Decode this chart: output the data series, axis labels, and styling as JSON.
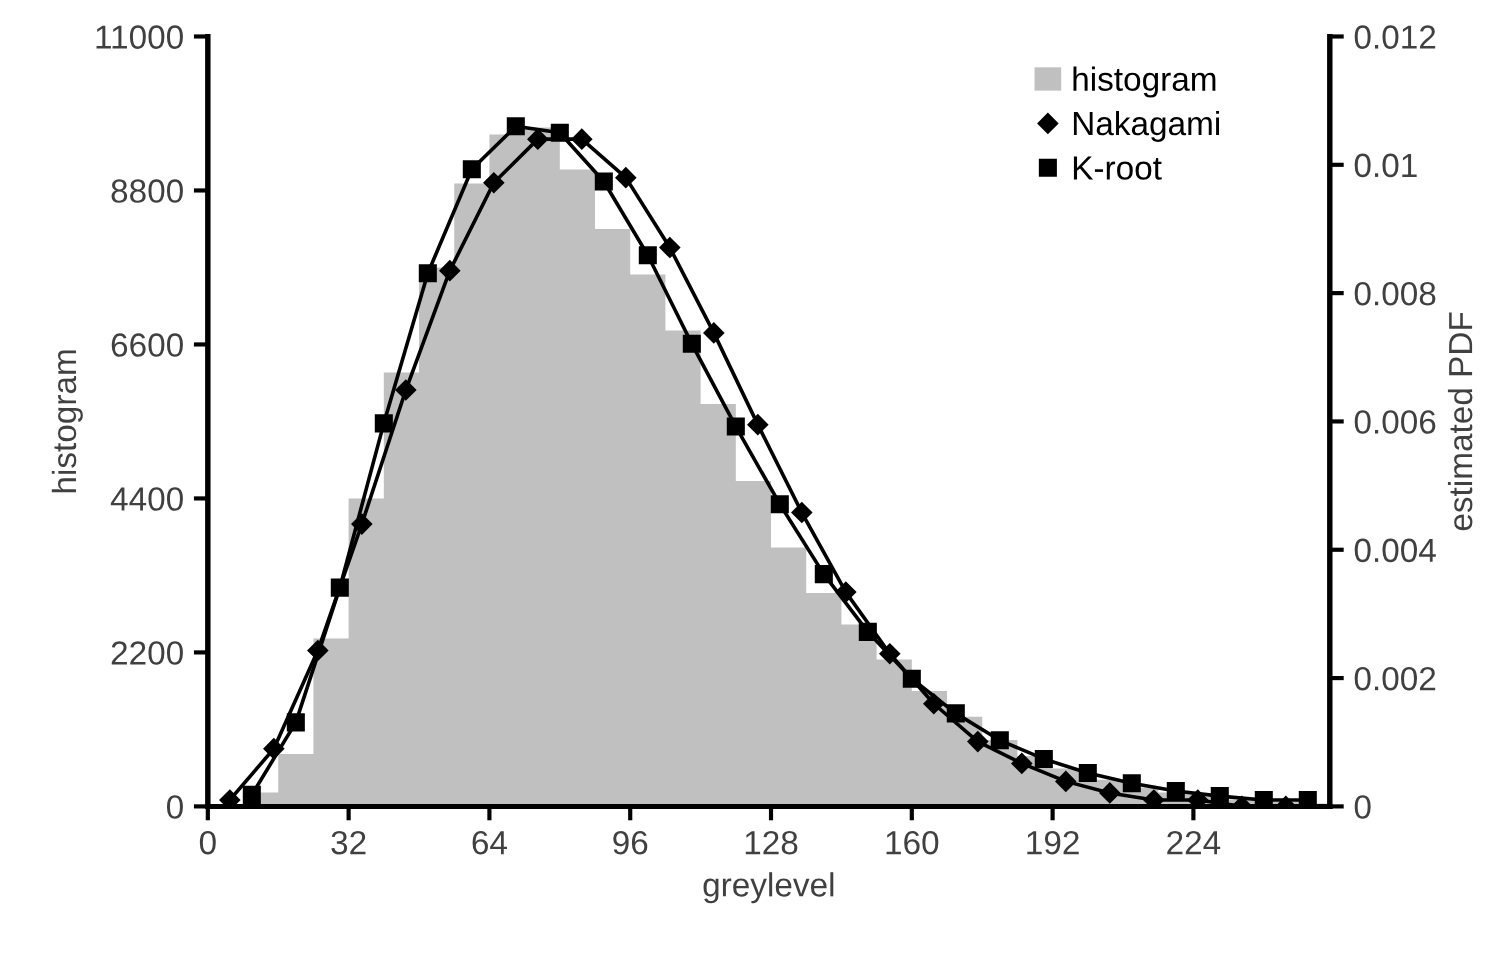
{
  "chart_data": {
    "type": "histogram",
    "xlabel": "greylevel",
    "ylabel": "histogram",
    "y2label": "estimated PDF",
    "xlim": [
      0,
      255
    ],
    "xticks": [
      0,
      32,
      64,
      96,
      128,
      160,
      192,
      224
    ],
    "ylim": [
      0,
      11000
    ],
    "yticks": [
      0,
      2200,
      4400,
      6600,
      8800,
      11000
    ],
    "y2lim": [
      0,
      0.012
    ],
    "y2ticks": [
      {
        "value": 0,
        "label": "0"
      },
      {
        "value": 0.002,
        "label": "0.002"
      },
      {
        "value": 0.004,
        "label": "0.004"
      },
      {
        "value": 0.006,
        "label": "0.006"
      },
      {
        "value": 0.008,
        "label": "0.008"
      },
      {
        "value": 0.01,
        "label": "0.01"
      },
      {
        "value": 0.012,
        "label": "0.012"
      }
    ],
    "grid": false,
    "legend": "top right",
    "series": [
      {
        "name": "histogram",
        "color": "#c0c0c0",
        "bins": [
          0,
          8,
          16,
          24,
          32,
          40,
          48,
          56,
          64,
          72,
          80,
          88,
          96,
          104,
          112,
          120,
          128,
          136,
          144,
          152,
          160,
          168,
          176,
          184,
          192,
          200,
          208,
          216,
          224,
          232,
          240,
          248,
          255
        ],
        "values": [
          0,
          200,
          750,
          2400,
          4400,
          6200,
          7700,
          8900,
          9600,
          9700,
          9100,
          8250,
          7600,
          6800,
          5750,
          4650,
          3700,
          3050,
          2600,
          2100,
          1650,
          1280,
          950,
          720,
          540,
          380,
          270,
          200,
          140,
          100,
          70,
          40
        ]
      },
      {
        "type": "line",
        "name": "Nakagami",
        "color": "#000000",
        "axis": "y2",
        "marker": "diamond",
        "line_style": "solid",
        "x": [
          5,
          15,
          25,
          35,
          45,
          55,
          65,
          75,
          85,
          95,
          105,
          115,
          125,
          135,
          145,
          155,
          165,
          175,
          185,
          195,
          205,
          215,
          225,
          235,
          245
        ],
        "values": [
          0.0001,
          0.0009,
          0.00243,
          0.0044,
          0.00649,
          0.00835,
          0.00972,
          0.0104,
          0.0104,
          0.0098,
          0.00871,
          0.00738,
          0.00595,
          0.00458,
          0.00334,
          0.00238,
          0.0016,
          0.00101,
          0.00067,
          0.00039,
          0.00021,
          0.0001,
          0.0001,
          0,
          0
        ]
      },
      {
        "type": "line",
        "name": "K-root",
        "color": "#000000",
        "axis": "y2",
        "marker": "square",
        "line_style": "solid",
        "x": [
          10,
          20,
          30,
          40,
          50,
          60,
          70,
          80,
          90,
          100,
          110,
          120,
          130,
          140,
          150,
          160,
          170,
          180,
          190,
          200,
          210,
          220,
          230,
          240,
          250
        ],
        "values": [
          0.00018,
          0.00131,
          0.00341,
          0.00597,
          0.00831,
          0.00993,
          0.0106,
          0.0105,
          0.00974,
          0.00859,
          0.00721,
          0.00592,
          0.00471,
          0.00362,
          0.00272,
          0.00199,
          0.00145,
          0.00103,
          0.00074,
          0.00052,
          0.00036,
          0.00024,
          0.00016,
          0.0001,
          0.0001
        ]
      }
    ]
  }
}
